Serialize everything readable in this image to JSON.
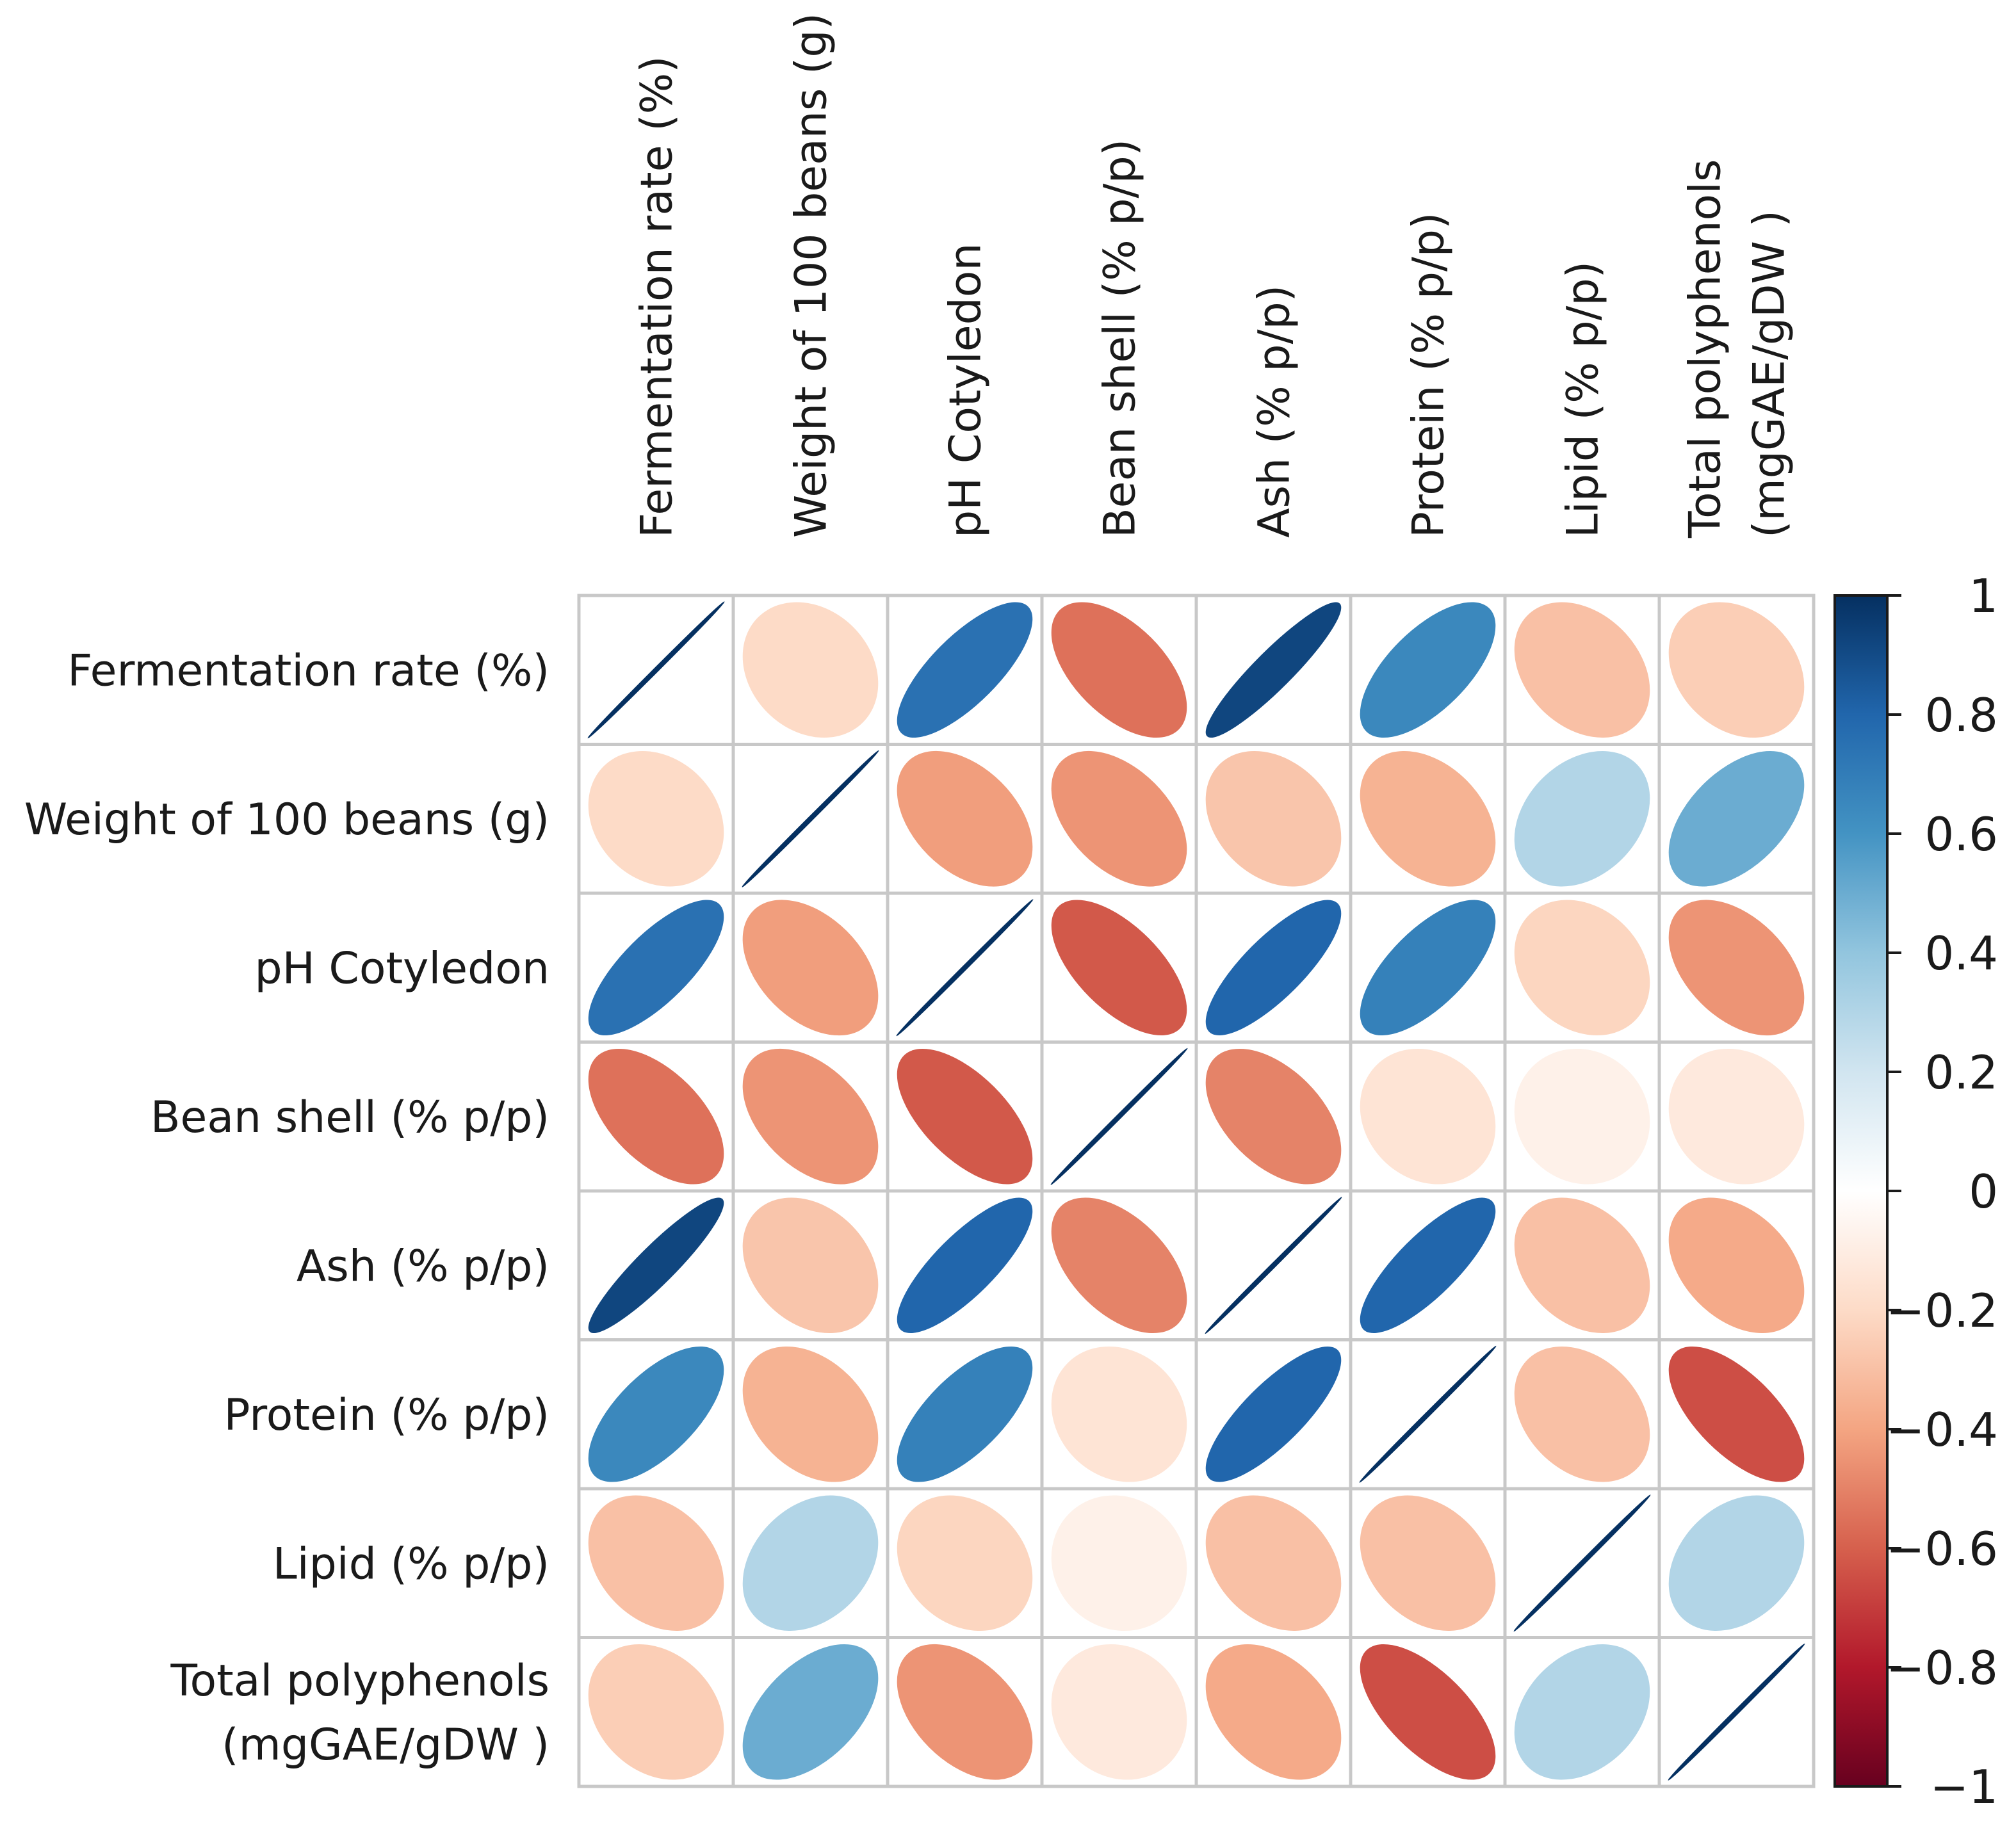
{
  "chart_data": {
    "type": "heatmap",
    "subtype": "correlation-ellipse-matrix",
    "variables": [
      {
        "label": "Fermentation rate (%)",
        "lines": [
          "Fermentation rate (%)"
        ]
      },
      {
        "label": "Weight of 100 beans (g)",
        "lines": [
          "Weight of 100 beans (g)"
        ]
      },
      {
        "label": "pH Cotyledon",
        "lines": [
          "pH Cotyledon"
        ]
      },
      {
        "label": "Bean shell  (% p/p)",
        "lines": [
          "Bean shell  (% p/p)"
        ]
      },
      {
        "label": "Ash  (% p/p)",
        "lines": [
          "Ash  (% p/p)"
        ]
      },
      {
        "label": "Protein (% p/p)",
        "lines": [
          "Protein (% p/p)"
        ]
      },
      {
        "label": "Lipid (% p/p)",
        "lines": [
          "Lipid (% p/p)"
        ]
      },
      {
        "label": "Total polyphenols (mgGAE/gDW )",
        "lines": [
          "Total polyphenols",
          "(mgGAE/gDW )"
        ]
      }
    ],
    "matrix": [
      [
        1.0,
        -0.2,
        0.75,
        -0.55,
        0.92,
        0.65,
        -0.3,
        -0.25
      ],
      [
        -0.2,
        1.0,
        -0.42,
        -0.45,
        -0.28,
        -0.35,
        0.3,
        0.5
      ],
      [
        0.75,
        -0.42,
        1.0,
        -0.62,
        0.8,
        0.68,
        -0.22,
        -0.45
      ],
      [
        -0.55,
        -0.45,
        -0.62,
        1.0,
        -0.5,
        -0.15,
        -0.08,
        -0.12
      ],
      [
        0.92,
        -0.28,
        0.8,
        -0.5,
        1.0,
        0.8,
        -0.3,
        -0.38
      ],
      [
        0.65,
        -0.35,
        0.68,
        -0.15,
        0.8,
        1.0,
        -0.3,
        -0.65
      ],
      [
        -0.3,
        0.3,
        -0.22,
        -0.08,
        -0.3,
        -0.3,
        1.0,
        0.3
      ],
      [
        -0.25,
        0.5,
        -0.45,
        -0.12,
        -0.38,
        -0.65,
        0.3,
        1.0
      ]
    ],
    "colorbar": {
      "range": [
        -1,
        1
      ],
      "ticks": [
        "1",
        "0.8",
        "0.6",
        "0.4",
        "0.2",
        "0",
        "−0.2",
        "−0.4",
        "−0.6",
        "−0.8",
        "−1"
      ],
      "tick_values": [
        1,
        0.8,
        0.6,
        0.4,
        0.2,
        0,
        -0.2,
        -0.4,
        -0.6,
        -0.8,
        -1
      ],
      "colors_high_to_low": [
        "#053061",
        "#2166ac",
        "#4393c3",
        "#92c5de",
        "#d1e5f0",
        "#ffffff",
        "#fddbc7",
        "#f4a582",
        "#d6604d",
        "#b2182b",
        "#67001f"
      ]
    },
    "grid": true,
    "legend": "right"
  }
}
